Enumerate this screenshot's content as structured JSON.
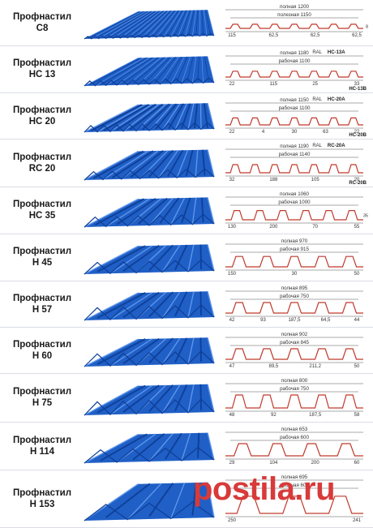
{
  "colors": {
    "metal": "#1f5fc6",
    "metal_dark": "#0f3f96",
    "metal_light": "#5d95ea",
    "profile_line": "#c0392b",
    "dim_line": "#555555"
  },
  "watermark": "postila.ru",
  "profiles": [
    {
      "name": "Профнастил",
      "code": "С8",
      "full": "полная 1200",
      "work": "полезная 1150",
      "dims": [
        "115",
        "62,5",
        "62,5",
        "62,5"
      ],
      "side": "8",
      "ral": "",
      "ral_codes": []
    },
    {
      "name": "Профнастил",
      "code": "НС 13",
      "full": "полная 1180",
      "work": "рабочая 1100",
      "dims": [
        "22",
        "115",
        "25",
        "33"
      ],
      "side": "",
      "ral": "RAL",
      "ral_codes": [
        "НС-13А",
        "НС-13В"
      ]
    },
    {
      "name": "Профнастил",
      "code": "НС 20",
      "full": "полная 1150",
      "work": "рабочая 1100",
      "dims": [
        "22",
        "4",
        "30",
        "63",
        "22"
      ],
      "side": "",
      "ral": "RAL",
      "ral_codes": [
        "НС-20А",
        "НС-20В"
      ]
    },
    {
      "name": "Профнастил",
      "code": "RC 20",
      "full": "полная 1190",
      "work": "рабочая 1140",
      "dims": [
        "32",
        "188",
        "105",
        "20"
      ],
      "side": "",
      "ral": "RAL",
      "ral_codes": [
        "RC-20А",
        "RC-20В"
      ]
    },
    {
      "name": "Профнастил",
      "code": "НС 35",
      "full": "полная 1060",
      "work": "рабочая 1000",
      "dims": [
        "130",
        "200",
        "70",
        "55"
      ],
      "side": "35",
      "ral": "",
      "ral_codes": []
    },
    {
      "name": "Профнастил",
      "code": "Н 45",
      "full": "полная 970",
      "work": "рабочая 915",
      "dims": [
        "150",
        "30",
        "50"
      ],
      "side": "",
      "ral": "",
      "ral_codes": []
    },
    {
      "name": "Профнастил",
      "code": "Н 57",
      "full": "полная 895",
      "work": "рабочая 750",
      "dims": [
        "42",
        "93",
        "187,5",
        "64,5",
        "44"
      ],
      "side": "",
      "ral": "",
      "ral_codes": []
    },
    {
      "name": "Профнастил",
      "code": "Н 60",
      "full": "полная 902",
      "work": "рабочая 845",
      "dims": [
        "47",
        "89,5",
        "211,2",
        "50"
      ],
      "side": "",
      "ral": "",
      "ral_codes": []
    },
    {
      "name": "Профнастил",
      "code": "Н 75",
      "full": "полная 800",
      "work": "рабочая 750",
      "dims": [
        "48",
        "92",
        "187,5",
        "58"
      ],
      "side": "",
      "ral": "",
      "ral_codes": []
    },
    {
      "name": "Профнастил",
      "code": "Н 114",
      "full": "полная 653",
      "work": "рабочая 600",
      "dims": [
        "29",
        "104",
        "200",
        "60"
      ],
      "side": "",
      "ral": "",
      "ral_codes": []
    },
    {
      "name": "Профнастил",
      "code": "Н 153",
      "full": "полная 695",
      "work": "рабочая 600",
      "dims": [
        "250",
        "241"
      ],
      "side": "",
      "ral": "",
      "ral_codes": []
    }
  ]
}
